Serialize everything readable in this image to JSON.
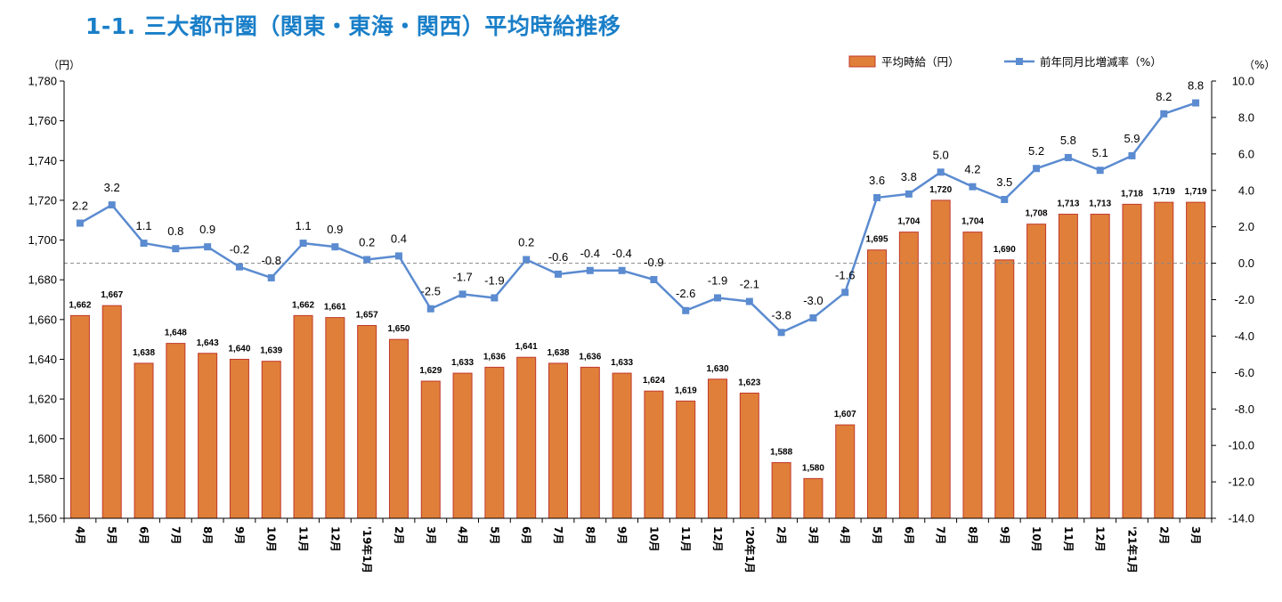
{
  "title": "1-1. 三大都市圏（関東・東海・関西）平均時給推移",
  "chart_data": {
    "type": "bar",
    "title": "1-1. 三大都市圏（関東・東海・関西）平均時給推移",
    "categories": [
      "4月",
      "5月",
      "6月",
      "7月",
      "8月",
      "9月",
      "10月",
      "11月",
      "12月",
      "'19年1月",
      "2月",
      "3月",
      "4月",
      "5月",
      "6月",
      "7月",
      "8月",
      "9月",
      "10月",
      "11月",
      "12月",
      "'20年1月",
      "2月",
      "3月",
      "4月",
      "5月",
      "6月",
      "7月",
      "8月",
      "9月",
      "10月",
      "11月",
      "12月",
      "'21年1月",
      "2月",
      "3月"
    ],
    "y_left_unit": "（円）",
    "y_right_unit": "（%）",
    "y_left": {
      "min": 1560,
      "max": 1780,
      "step": 20
    },
    "y_right": {
      "min": -14.0,
      "max": 10.0,
      "step": 2.0
    },
    "legend_position": "top-right",
    "series": [
      {
        "name": "平均時給（円）",
        "type": "bar",
        "axis": "left",
        "color": "#e07f3a",
        "values": [
          1662,
          1667,
          1638,
          1648,
          1643,
          1640,
          1639,
          1662,
          1661,
          1657,
          1650,
          1629,
          1633,
          1636,
          1641,
          1638,
          1636,
          1633,
          1624,
          1619,
          1630,
          1623,
          1588,
          1580,
          1607,
          1695,
          1704,
          1720,
          1704,
          1690,
          1708,
          1713,
          1713,
          1718,
          1719,
          1719
        ]
      },
      {
        "name": "前年同月比増減率（%）",
        "type": "line",
        "axis": "right",
        "color": "#5b8bd0",
        "values": [
          2.2,
          3.2,
          1.1,
          0.8,
          0.9,
          -0.2,
          -0.8,
          1.1,
          0.9,
          0.2,
          0.4,
          -2.5,
          -1.7,
          -1.9,
          0.2,
          -0.6,
          -0.4,
          -0.4,
          -0.9,
          -2.6,
          -1.9,
          -2.1,
          -3.8,
          -3.0,
          -1.6,
          3.6,
          3.8,
          5.0,
          4.2,
          3.5,
          5.2,
          5.8,
          5.1,
          5.9,
          8.2,
          8.8
        ]
      }
    ]
  }
}
